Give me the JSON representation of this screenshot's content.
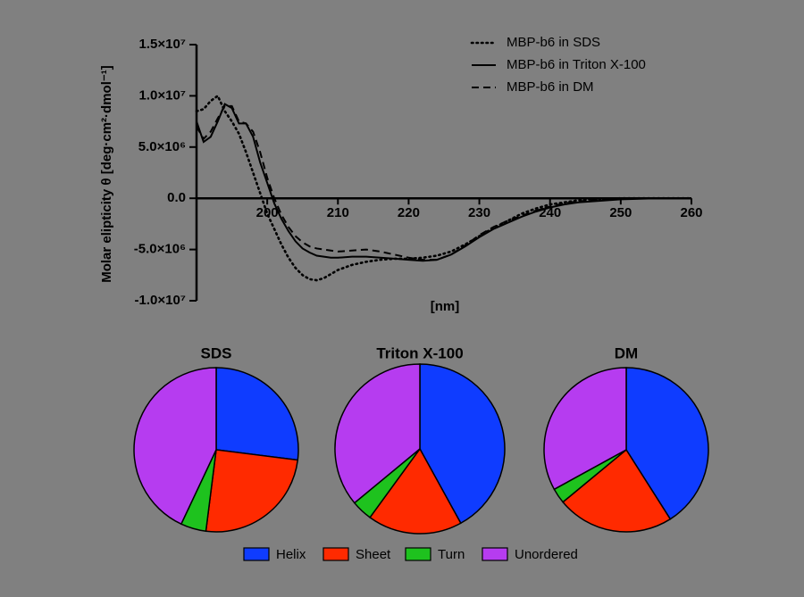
{
  "chart_data": [
    {
      "type": "line",
      "y_label": "Molar elipticity θ [deg·cm²·dmol⁻¹]",
      "x_label": "[nm]",
      "xlim": [
        190,
        260
      ],
      "xticks": [
        200,
        210,
        220,
        230,
        240,
        250,
        260
      ],
      "ylim": [
        -10000000,
        15000000
      ],
      "yticks": [
        {
          "value": -10000000,
          "label": "-1.0×10⁷"
        },
        {
          "value": -5000000,
          "label": "-5.0×10⁶"
        },
        {
          "value": 0,
          "label": "0.0"
        },
        {
          "value": 5000000,
          "label": "5.0×10⁶"
        },
        {
          "value": 10000000,
          "label": "1.0×10⁷"
        },
        {
          "value": 15000000,
          "label": "1.5×10⁷"
        }
      ],
      "legend": "top-right",
      "x": [
        190,
        191,
        192,
        193,
        194,
        195,
        196,
        197,
        198,
        199,
        200,
        201,
        202,
        203,
        204,
        205,
        206,
        207,
        208,
        209,
        210,
        212,
        214,
        216,
        218,
        220,
        222,
        224,
        226,
        228,
        230,
        232,
        234,
        236,
        238,
        240,
        242,
        244,
        246,
        248,
        250,
        255,
        260
      ],
      "series": [
        {
          "name": "MBP-b6 in SDS",
          "color": "#000000",
          "dash": "dotted",
          "values": [
            8500000,
            8700000,
            9500000,
            10000000,
            8500000,
            7500000,
            6300000,
            4500000,
            2500000,
            500000,
            -1500000,
            -3000000,
            -4500000,
            -5800000,
            -6800000,
            -7500000,
            -7900000,
            -8000000,
            -7800000,
            -7400000,
            -7000000,
            -6500000,
            -6200000,
            -6000000,
            -5900000,
            -5900000,
            -5800000,
            -5600000,
            -5200000,
            -4500000,
            -3700000,
            -2900000,
            -2200000,
            -1500000,
            -1000000,
            -600000,
            -400000,
            -200000,
            -100000,
            -50000,
            0,
            0,
            0
          ]
        },
        {
          "name": "MBP-b6 in Triton X-100",
          "color": "#000000",
          "dash": "solid",
          "values": [
            7500000,
            5500000,
            6000000,
            7500000,
            9200000,
            8800000,
            7300000,
            7300000,
            6000000,
            3500000,
            1500000,
            -500000,
            -2000000,
            -3200000,
            -4200000,
            -4900000,
            -5300000,
            -5600000,
            -5700000,
            -5800000,
            -5800000,
            -5700000,
            -5700000,
            -5800000,
            -5900000,
            -6000000,
            -6100000,
            -6000000,
            -5500000,
            -4700000,
            -3800000,
            -3000000,
            -2400000,
            -1800000,
            -1300000,
            -900000,
            -600000,
            -400000,
            -300000,
            -200000,
            -100000,
            0,
            0
          ]
        },
        {
          "name": "MBP-b6 in DM",
          "color": "#000000",
          "dash": "dashed",
          "values": [
            7000000,
            5800000,
            6500000,
            7800000,
            9000000,
            9000000,
            7500000,
            7300000,
            6500000,
            4500000,
            2000000,
            0,
            -1600000,
            -2800000,
            -3700000,
            -4300000,
            -4700000,
            -4900000,
            -5000000,
            -5100000,
            -5200000,
            -5100000,
            -5000000,
            -5200000,
            -5500000,
            -5800000,
            -6000000,
            -6000000,
            -5500000,
            -4600000,
            -3600000,
            -2800000,
            -2200000,
            -1700000,
            -1200000,
            -800000,
            -500000,
            -300000,
            -200000,
            -100000,
            -50000,
            0,
            0
          ]
        }
      ]
    },
    {
      "type": "pie",
      "title": "SDS",
      "values": [
        27,
        25,
        5,
        43
      ]
    },
    {
      "type": "pie",
      "title": "Triton X-100",
      "values": [
        42,
        18,
        4,
        36
      ]
    },
    {
      "type": "pie",
      "title": "DM",
      "values": [
        41,
        23,
        3,
        33
      ]
    }
  ],
  "pie_legend": {
    "labels": [
      "Helix",
      "Sheet",
      "Turn",
      "Unordered"
    ],
    "colors": [
      "#0f3cff",
      "#ff2a00",
      "#1ec21e",
      "#b63cf0"
    ]
  }
}
